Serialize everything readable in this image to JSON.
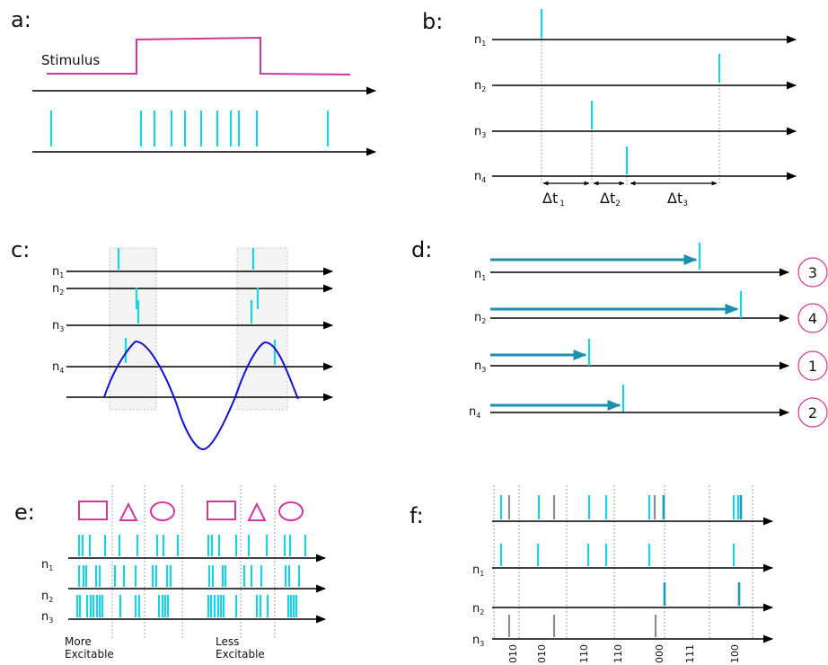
{
  "panels": {
    "a": {
      "label": "a:",
      "stimulus_label": "Stimulus"
    },
    "b": {
      "label": "b:",
      "neurons": [
        {
          "base": "n",
          "sub": "1"
        },
        {
          "base": "n",
          "sub": "2"
        },
        {
          "base": "n",
          "sub": "3"
        },
        {
          "base": "n",
          "sub": "4"
        }
      ],
      "intervals": [
        {
          "base": "Δt",
          "sub": "1"
        },
        {
          "base": "Δt",
          "sub": "2"
        },
        {
          "base": "Δt",
          "sub": "3"
        }
      ]
    },
    "c": {
      "label": "c:",
      "neurons": [
        {
          "base": "n",
          "sub": "1"
        },
        {
          "base": "n",
          "sub": "2"
        },
        {
          "base": "n",
          "sub": "3"
        },
        {
          "base": "n",
          "sub": "4"
        }
      ]
    },
    "d": {
      "label": "d:",
      "neurons": [
        {
          "base": "n",
          "sub": "1",
          "rank": "3"
        },
        {
          "base": "n",
          "sub": "2",
          "rank": "4"
        },
        {
          "base": "n",
          "sub": "3",
          "rank": "1"
        },
        {
          "base": "n",
          "sub": "4",
          "rank": "2"
        }
      ]
    },
    "e": {
      "label": "e:",
      "neurons": [
        {
          "base": "n",
          "sub": "1"
        },
        {
          "base": "n",
          "sub": "2"
        },
        {
          "base": "n",
          "sub": "3"
        }
      ],
      "caption_left": [
        "More",
        "Excitable"
      ],
      "caption_right": [
        "Less",
        "Excitable"
      ]
    },
    "f": {
      "label": "f:",
      "neurons": [
        {
          "base": "n",
          "sub": "1"
        },
        {
          "base": "n",
          "sub": "2"
        },
        {
          "base": "n",
          "sub": "3"
        }
      ],
      "codes": [
        "010",
        "010",
        "110",
        "110",
        "000",
        "111",
        "100"
      ]
    }
  },
  "colors": {
    "spike": "#19d3e0",
    "spike_dark": "#1a9bb8",
    "spike_gray": "#8c8c8c",
    "stimulus": "#d0389c",
    "oscillation": "#1010d0",
    "rank_circle": "#d0389c"
  }
}
